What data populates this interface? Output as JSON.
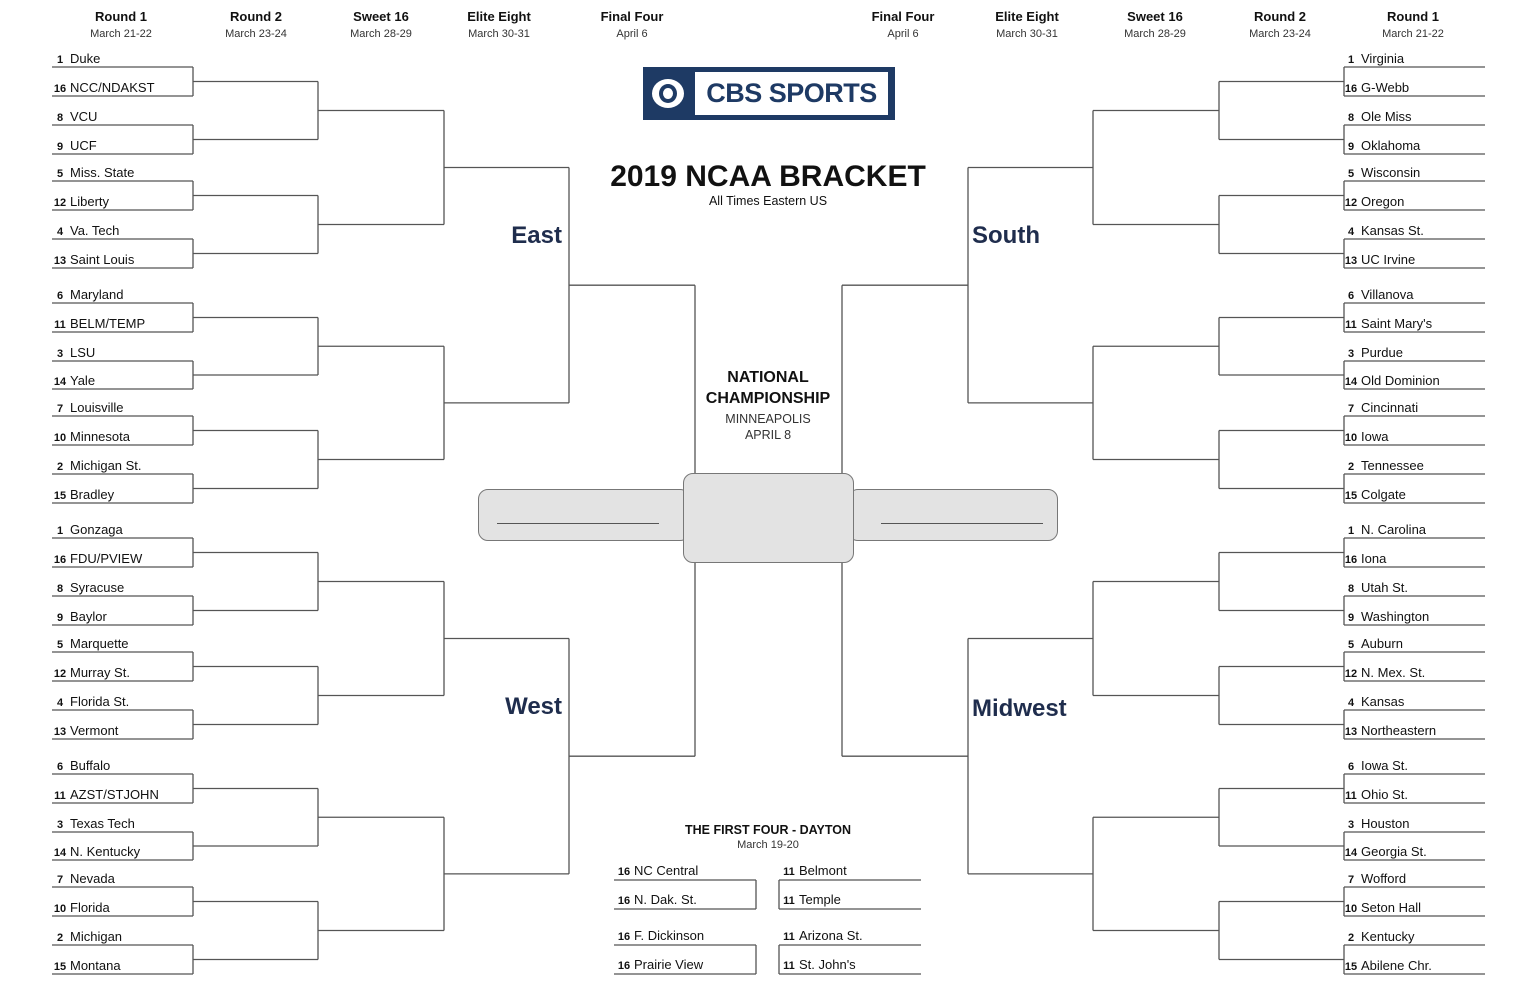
{
  "header": {
    "left_rounds": [
      {
        "title": "Round 1",
        "dates": "March 21-22"
      },
      {
        "title": "Round 2",
        "dates": "March 23-24"
      },
      {
        "title": "Sweet 16",
        "dates": "March 28-29"
      },
      {
        "title": "Elite Eight",
        "dates": "March 30-31"
      },
      {
        "title": "Final Four",
        "dates": "April 6"
      }
    ],
    "right_rounds": [
      {
        "title": "Final Four",
        "dates": "April 6"
      },
      {
        "title": "Elite Eight",
        "dates": "March 30-31"
      },
      {
        "title": "Sweet 16",
        "dates": "March 28-29"
      },
      {
        "title": "Round 2",
        "dates": "March 23-24"
      },
      {
        "title": "Round 1",
        "dates": "March 21-22"
      }
    ]
  },
  "logo": {
    "text": "CBS SPORTS",
    "brand_color": "#1e3a64"
  },
  "title": {
    "main": "2019 NCAA BRACKET",
    "sub": "All Times Eastern US"
  },
  "championship": {
    "line1": "NATIONAL",
    "line2": "CHAMPIONSHIP",
    "city": "MINNEAPOLIS",
    "date": "APRIL 8"
  },
  "region_color": "#1f2d4d",
  "regions": {
    "east": {
      "name": "East",
      "teams": [
        [
          "1",
          "Duke"
        ],
        [
          "16",
          "NCC/NDAKST"
        ],
        [
          "8",
          "VCU"
        ],
        [
          "9",
          "UCF"
        ],
        [
          "5",
          "Miss. State"
        ],
        [
          "12",
          "Liberty"
        ],
        [
          "4",
          "Va. Tech"
        ],
        [
          "13",
          "Saint Louis"
        ],
        [
          "6",
          "Maryland"
        ],
        [
          "11",
          "BELM/TEMP"
        ],
        [
          "3",
          "LSU"
        ],
        [
          "14",
          "Yale"
        ],
        [
          "7",
          "Louisville"
        ],
        [
          "10",
          "Minnesota"
        ],
        [
          "2",
          "Michigan St."
        ],
        [
          "15",
          "Bradley"
        ]
      ]
    },
    "west": {
      "name": "West",
      "teams": [
        [
          "1",
          "Gonzaga"
        ],
        [
          "16",
          "FDU/PVIEW"
        ],
        [
          "8",
          "Syracuse"
        ],
        [
          "9",
          "Baylor"
        ],
        [
          "5",
          "Marquette"
        ],
        [
          "12",
          "Murray St."
        ],
        [
          "4",
          "Florida St."
        ],
        [
          "13",
          "Vermont"
        ],
        [
          "6",
          "Buffalo"
        ],
        [
          "11",
          "AZST/STJOHN"
        ],
        [
          "3",
          "Texas Tech"
        ],
        [
          "14",
          "N. Kentucky"
        ],
        [
          "7",
          "Nevada"
        ],
        [
          "10",
          "Florida"
        ],
        [
          "2",
          "Michigan"
        ],
        [
          "15",
          "Montana"
        ]
      ]
    },
    "south": {
      "name": "South",
      "teams": [
        [
          "1",
          "Virginia"
        ],
        [
          "16",
          "G-Webb"
        ],
        [
          "8",
          "Ole Miss"
        ],
        [
          "9",
          "Oklahoma"
        ],
        [
          "5",
          "Wisconsin"
        ],
        [
          "12",
          "Oregon"
        ],
        [
          "4",
          "Kansas St."
        ],
        [
          "13",
          "UC Irvine"
        ],
        [
          "6",
          "Villanova"
        ],
        [
          "11",
          "Saint Mary's"
        ],
        [
          "3",
          "Purdue"
        ],
        [
          "14",
          "Old Dominion"
        ],
        [
          "7",
          "Cincinnati"
        ],
        [
          "10",
          "Iowa"
        ],
        [
          "2",
          "Tennessee"
        ],
        [
          "15",
          "Colgate"
        ]
      ]
    },
    "midwest": {
      "name": "Midwest",
      "teams": [
        [
          "1",
          "N. Carolina"
        ],
        [
          "16",
          "Iona"
        ],
        [
          "8",
          "Utah St."
        ],
        [
          "9",
          "Washington"
        ],
        [
          "5",
          "Auburn"
        ],
        [
          "12",
          "N. Mex. St."
        ],
        [
          "4",
          "Kansas"
        ],
        [
          "13",
          "Northeastern"
        ],
        [
          "6",
          "Iowa St."
        ],
        [
          "11",
          "Ohio St."
        ],
        [
          "3",
          "Houston"
        ],
        [
          "14",
          "Georgia St."
        ],
        [
          "7",
          "Wofford"
        ],
        [
          "10",
          "Seton Hall"
        ],
        [
          "2",
          "Kentucky"
        ],
        [
          "15",
          "Abilene Chr."
        ]
      ]
    }
  },
  "first_four": {
    "title": "THE FIRST FOUR - DAYTON",
    "dates": "March 19-20",
    "games": [
      [
        [
          "16",
          "NC Central"
        ],
        [
          "16",
          "N. Dak. St."
        ]
      ],
      [
        [
          "11",
          "Belmont"
        ],
        [
          "11",
          "Temple"
        ]
      ],
      [
        [
          "16",
          "F. Dickinson"
        ],
        [
          "16",
          "Prairie View"
        ]
      ],
      [
        [
          "11",
          "Arizona St."
        ],
        [
          "11",
          "St. John's"
        ]
      ]
    ]
  }
}
